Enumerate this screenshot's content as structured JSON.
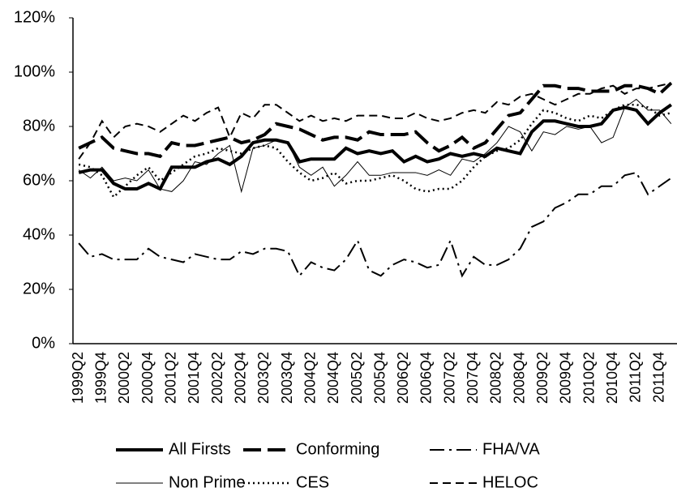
{
  "chart_data": {
    "type": "line",
    "categories": [
      "1999Q2",
      null,
      "1999Q4",
      null,
      "2000Q2",
      null,
      "2000Q4",
      null,
      "2001Q2",
      null,
      "2001Q4",
      null,
      "2002Q2",
      null,
      "2002Q4",
      null,
      "2003Q2",
      null,
      "2003Q4",
      null,
      "2004Q2",
      null,
      "2004Q4",
      null,
      "2005Q2",
      null,
      "2005Q4",
      null,
      "2006Q2",
      null,
      "2006Q4",
      null,
      "2007Q2",
      null,
      "2007Q4",
      null,
      "2008Q2",
      null,
      "2008Q4",
      null,
      "2009Q2",
      null,
      "2009Q4",
      null,
      "2010Q2",
      null,
      "2010Q4",
      null,
      "2011Q2",
      null,
      "2011Q4",
      null
    ],
    "series": [
      {
        "name": "All Firsts",
        "color": "#000000",
        "width": 4,
        "dash": "none",
        "values": [
          63,
          64,
          64,
          59,
          57,
          57,
          59,
          57,
          65,
          65,
          65,
          67,
          68,
          66,
          69,
          74,
          75,
          75,
          74,
          67,
          68,
          68,
          68,
          72,
          70,
          71,
          70,
          71,
          67,
          69,
          67,
          68,
          70,
          69,
          70,
          69,
          72,
          71,
          70,
          78,
          82,
          82,
          81,
          80,
          80,
          81,
          86,
          87,
          86,
          81,
          85,
          88
        ]
      },
      {
        "name": "Conforming",
        "color": "#000000",
        "width": 4,
        "dash": "22 8",
        "values": [
          72,
          74,
          76,
          72,
          71,
          70,
          70,
          69,
          74,
          73,
          73,
          74,
          75,
          76,
          74,
          75,
          77,
          81,
          80,
          79,
          77,
          75,
          76,
          76,
          75,
          78,
          77,
          77,
          77,
          78,
          74,
          71,
          73,
          76,
          72,
          74,
          79,
          84,
          85,
          90,
          95,
          95,
          94,
          94,
          93,
          93,
          93,
          95,
          95,
          94,
          92,
          96
        ]
      },
      {
        "name": "FHA/VA",
        "color": "#000000",
        "width": 2,
        "dash": "18 6 3 6",
        "values": [
          37,
          32,
          33,
          31,
          31,
          31,
          35,
          32,
          31,
          30,
          33,
          32,
          31,
          31,
          34,
          33,
          35,
          35,
          34,
          25,
          30,
          28,
          27,
          31,
          38,
          27,
          25,
          29,
          31,
          30,
          28,
          29,
          38,
          25,
          32,
          29,
          29,
          31,
          35,
          43,
          45,
          50,
          52,
          55,
          55,
          58,
          58,
          62,
          63,
          55,
          58,
          61
        ]
      },
      {
        "name": "Non Prime",
        "color": "#000000",
        "width": 1,
        "dash": "none",
        "values": [
          64,
          61,
          65,
          60,
          61,
          60,
          64,
          57,
          56,
          60,
          67,
          66,
          70,
          73,
          56,
          72,
          73,
          75,
          74,
          65,
          62,
          65,
          58,
          62,
          67,
          62,
          62,
          63,
          63,
          63,
          62,
          64,
          62,
          68,
          67,
          70,
          74,
          80,
          78,
          71,
          78,
          77,
          80,
          79,
          80,
          74,
          76,
          87,
          90,
          86,
          86,
          81
        ]
      },
      {
        "name": "CES",
        "color": "#000000",
        "width": 2.5,
        "dash": "2 4",
        "values": [
          66,
          65,
          62,
          54,
          58,
          62,
          65,
          60,
          63,
          66,
          69,
          70,
          72,
          71,
          70,
          72,
          73,
          72,
          67,
          63,
          60,
          61,
          63,
          59,
          60,
          60,
          61,
          62,
          60,
          57,
          56,
          57,
          57,
          60,
          65,
          69,
          71,
          72,
          75,
          81,
          86,
          85,
          83,
          82,
          84,
          83,
          86,
          88,
          88,
          87,
          84,
          85
        ]
      },
      {
        "name": "HELOC",
        "color": "#000000",
        "width": 2,
        "dash": "10 6",
        "values": [
          68,
          74,
          82,
          76,
          80,
          81,
          80,
          78,
          81,
          84,
          82,
          85,
          87,
          76,
          85,
          83,
          88,
          88,
          85,
          82,
          84,
          82,
          83,
          82,
          84,
          84,
          84,
          83,
          83,
          85,
          83,
          82,
          83,
          85,
          86,
          85,
          89,
          88,
          91,
          92,
          90,
          88,
          90,
          92,
          92,
          94,
          95,
          92,
          94,
          94,
          95,
          96
        ]
      }
    ],
    "ylim": [
      0,
      120
    ],
    "yticks": [
      {
        "value": 0,
        "label": "0%"
      },
      {
        "value": 20,
        "label": "20%"
      },
      {
        "value": 40,
        "label": "40%"
      },
      {
        "value": 60,
        "label": "60%"
      },
      {
        "value": 80,
        "label": "80%"
      },
      {
        "value": 100,
        "label": "100%"
      },
      {
        "value": 120,
        "label": "120%"
      }
    ],
    "grid": false,
    "legend": "bottom"
  }
}
